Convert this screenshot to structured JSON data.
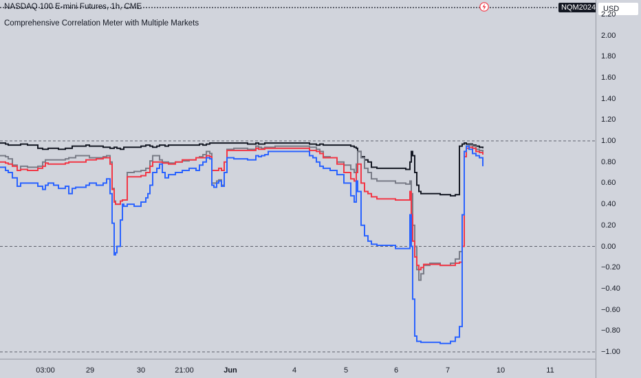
{
  "header": {
    "symbol_line": "NASDAQ 100 E-mini Futures, 1h, CME",
    "indicator_title": "Comprehensive Correlation Meter with Multiple Markets",
    "symbol_badge": "NQM2024",
    "currency": "USD"
  },
  "colors": {
    "background": "#d1d4dc",
    "series_black": "#131722",
    "series_gray": "#787b86",
    "series_red": "#f23645",
    "series_blue": "#2962ff",
    "bolt_icon": "#f23645"
  },
  "chart_data": {
    "type": "line",
    "step": true,
    "ylim": [
      -1.0,
      2.2
    ],
    "y_ticks": [
      "2.20",
      "2.00",
      "1.80",
      "1.60",
      "1.40",
      "1.20",
      "1.00",
      "0.80",
      "0.60",
      "0.40",
      "0.20",
      "0.00",
      "−0.20",
      "−0.40",
      "−0.60",
      "−0.80",
      "−1.00"
    ],
    "x_ticks": [
      "03:00",
      "29",
      "30",
      "21:00",
      "Jun",
      "4",
      "5",
      "6",
      "7",
      "10",
      "11"
    ],
    "reference_lines": [
      1.0,
      0.0,
      -1.0
    ],
    "x": [
      0,
      8,
      12,
      18,
      25,
      30,
      40,
      45,
      55,
      62,
      66,
      70,
      78,
      85,
      95,
      100,
      105,
      110,
      125,
      130,
      140,
      150,
      155,
      160,
      163,
      166,
      168,
      170,
      175,
      178,
      180,
      185,
      195,
      205,
      212,
      215,
      218,
      222,
      228,
      232,
      236,
      240,
      245,
      255,
      265,
      275,
      285,
      290,
      295,
      300,
      305,
      308,
      311,
      315,
      318,
      322,
      326,
      330,
      340,
      360,
      372,
      376,
      380,
      385,
      390,
      395,
      400,
      410,
      420,
      440,
      450,
      455,
      460,
      465,
      470,
      480,
      490,
      500,
      510,
      515,
      518,
      520,
      525,
      530,
      535,
      540,
      548,
      560,
      575,
      590,
      596,
      598,
      600,
      603,
      606,
      609,
      612,
      616,
      625,
      640,
      655,
      662,
      668,
      672,
      675,
      678,
      682,
      687,
      692,
      697,
      702
    ],
    "series": [
      {
        "values": [
          0.98,
          0.97,
          0.96,
          0.96,
          0.96,
          0.97,
          0.96,
          0.96,
          0.93,
          0.92,
          0.92,
          0.93,
          0.93,
          0.92,
          0.93,
          0.93,
          0.95,
          0.95,
          0.96,
          0.95,
          0.95,
          0.94,
          0.94,
          0.93,
          0.93,
          0.94,
          0.94,
          0.93,
          0.92,
          0.92,
          0.94,
          0.94,
          0.94,
          0.95,
          0.96,
          0.96,
          0.95,
          0.94,
          0.95,
          0.96,
          0.96,
          0.95,
          0.96,
          0.96,
          0.96,
          0.96,
          0.96,
          0.97,
          0.96,
          0.97,
          0.98,
          0.98,
          0.98,
          0.98,
          0.98,
          0.98,
          0.98,
          0.98,
          0.98,
          0.97,
          0.98,
          0.97,
          0.97,
          0.98,
          0.98,
          0.98,
          0.98,
          0.98,
          0.98,
          0.98,
          0.97,
          0.97,
          0.96,
          0.97,
          0.96,
          0.96,
          0.96,
          0.96,
          0.95,
          0.94,
          0.93,
          0.9,
          0.85,
          0.82,
          0.8,
          0.75,
          0.74,
          0.74,
          0.74,
          0.73,
          0.8,
          0.9,
          0.86,
          0.7,
          0.58,
          0.52,
          0.5,
          0.5,
          0.5,
          0.49,
          0.48,
          0.49,
          0.95,
          0.97,
          0.98,
          0.97,
          0.97,
          0.96,
          0.95,
          0.94,
          0.93
        ]
      },
      {
        "values": [
          0.86,
          0.85,
          0.83,
          0.77,
          0.72,
          0.76,
          0.75,
          0.75,
          0.76,
          0.8,
          0.82,
          0.82,
          0.82,
          0.82,
          0.83,
          0.84,
          0.84,
          0.86,
          0.86,
          0.84,
          0.84,
          0.85,
          0.86,
          0.8,
          0.55,
          0.43,
          0.4,
          0.4,
          0.43,
          0.44,
          0.44,
          0.7,
          0.71,
          0.72,
          0.74,
          0.74,
          0.81,
          0.86,
          0.86,
          0.82,
          0.8,
          0.8,
          0.79,
          0.8,
          0.81,
          0.82,
          0.84,
          0.85,
          0.87,
          0.9,
          0.88,
          0.6,
          0.6,
          0.62,
          0.63,
          0.58,
          0.7,
          0.92,
          0.93,
          0.92,
          0.95,
          0.94,
          0.93,
          0.94,
          0.94,
          0.94,
          0.95,
          0.95,
          0.95,
          0.95,
          0.94,
          0.94,
          0.92,
          0.9,
          0.85,
          0.84,
          0.8,
          0.77,
          0.73,
          0.7,
          0.78,
          0.9,
          0.84,
          0.74,
          0.7,
          0.64,
          0.62,
          0.62,
          0.6,
          0.59,
          0.62,
          0.5,
          0.2,
          0.0,
          -0.22,
          -0.32,
          -0.26,
          -0.18,
          -0.16,
          -0.18,
          -0.16,
          -0.12,
          -0.05,
          0.3,
          0.9,
          0.95,
          0.96,
          0.95,
          0.92,
          0.91,
          0.88
        ]
      },
      {
        "values": [
          0.8,
          0.79,
          0.78,
          0.76,
          0.72,
          0.73,
          0.72,
          0.72,
          0.74,
          0.76,
          0.79,
          0.78,
          0.78,
          0.78,
          0.79,
          0.8,
          0.8,
          0.8,
          0.82,
          0.82,
          0.83,
          0.84,
          0.84,
          0.78,
          0.54,
          0.42,
          0.4,
          0.4,
          0.43,
          0.44,
          0.44,
          0.66,
          0.66,
          0.67,
          0.7,
          0.7,
          0.76,
          0.8,
          0.8,
          0.8,
          0.79,
          0.79,
          0.78,
          0.8,
          0.82,
          0.82,
          0.84,
          0.84,
          0.84,
          0.86,
          0.85,
          0.72,
          0.72,
          0.72,
          0.74,
          0.72,
          0.8,
          0.91,
          0.91,
          0.91,
          0.93,
          0.92,
          0.92,
          0.93,
          0.93,
          0.93,
          0.93,
          0.93,
          0.93,
          0.93,
          0.91,
          0.91,
          0.9,
          0.88,
          0.84,
          0.84,
          0.78,
          0.7,
          0.64,
          0.62,
          0.7,
          0.78,
          0.6,
          0.52,
          0.5,
          0.47,
          0.45,
          0.45,
          0.44,
          0.44,
          0.52,
          0.3,
          0.05,
          -0.1,
          -0.18,
          -0.22,
          -0.2,
          -0.17,
          -0.17,
          -0.18,
          -0.18,
          -0.16,
          -0.15,
          0.0,
          0.85,
          0.93,
          0.94,
          0.93,
          0.9,
          0.89,
          0.87
        ]
      },
      {
        "values": [
          0.75,
          0.72,
          0.7,
          0.65,
          0.57,
          0.6,
          0.6,
          0.6,
          0.57,
          0.54,
          0.58,
          0.6,
          0.58,
          0.55,
          0.57,
          0.5,
          0.55,
          0.56,
          0.58,
          0.6,
          0.58,
          0.6,
          0.64,
          0.5,
          0.22,
          -0.08,
          -0.06,
          0.0,
          0.25,
          0.4,
          0.38,
          0.4,
          0.38,
          0.42,
          0.46,
          0.5,
          0.58,
          0.7,
          0.74,
          0.78,
          0.7,
          0.65,
          0.68,
          0.7,
          0.72,
          0.74,
          0.72,
          0.77,
          0.8,
          0.84,
          0.83,
          0.58,
          0.56,
          0.6,
          0.62,
          0.57,
          0.7,
          0.84,
          0.83,
          0.82,
          0.86,
          0.85,
          0.86,
          0.87,
          0.9,
          0.9,
          0.9,
          0.9,
          0.9,
          0.9,
          0.86,
          0.84,
          0.8,
          0.76,
          0.74,
          0.72,
          0.68,
          0.6,
          0.48,
          0.42,
          0.62,
          0.52,
          0.2,
          0.1,
          0.05,
          0.02,
          0.01,
          0.01,
          -0.02,
          -0.02,
          0.3,
          0.0,
          -0.5,
          -0.85,
          -0.9,
          -0.9,
          -0.91,
          -0.91,
          -0.91,
          -0.92,
          -0.9,
          -0.86,
          -0.76,
          0.3,
          0.9,
          0.95,
          0.92,
          0.88,
          0.86,
          0.84,
          0.76
        ]
      }
    ]
  }
}
